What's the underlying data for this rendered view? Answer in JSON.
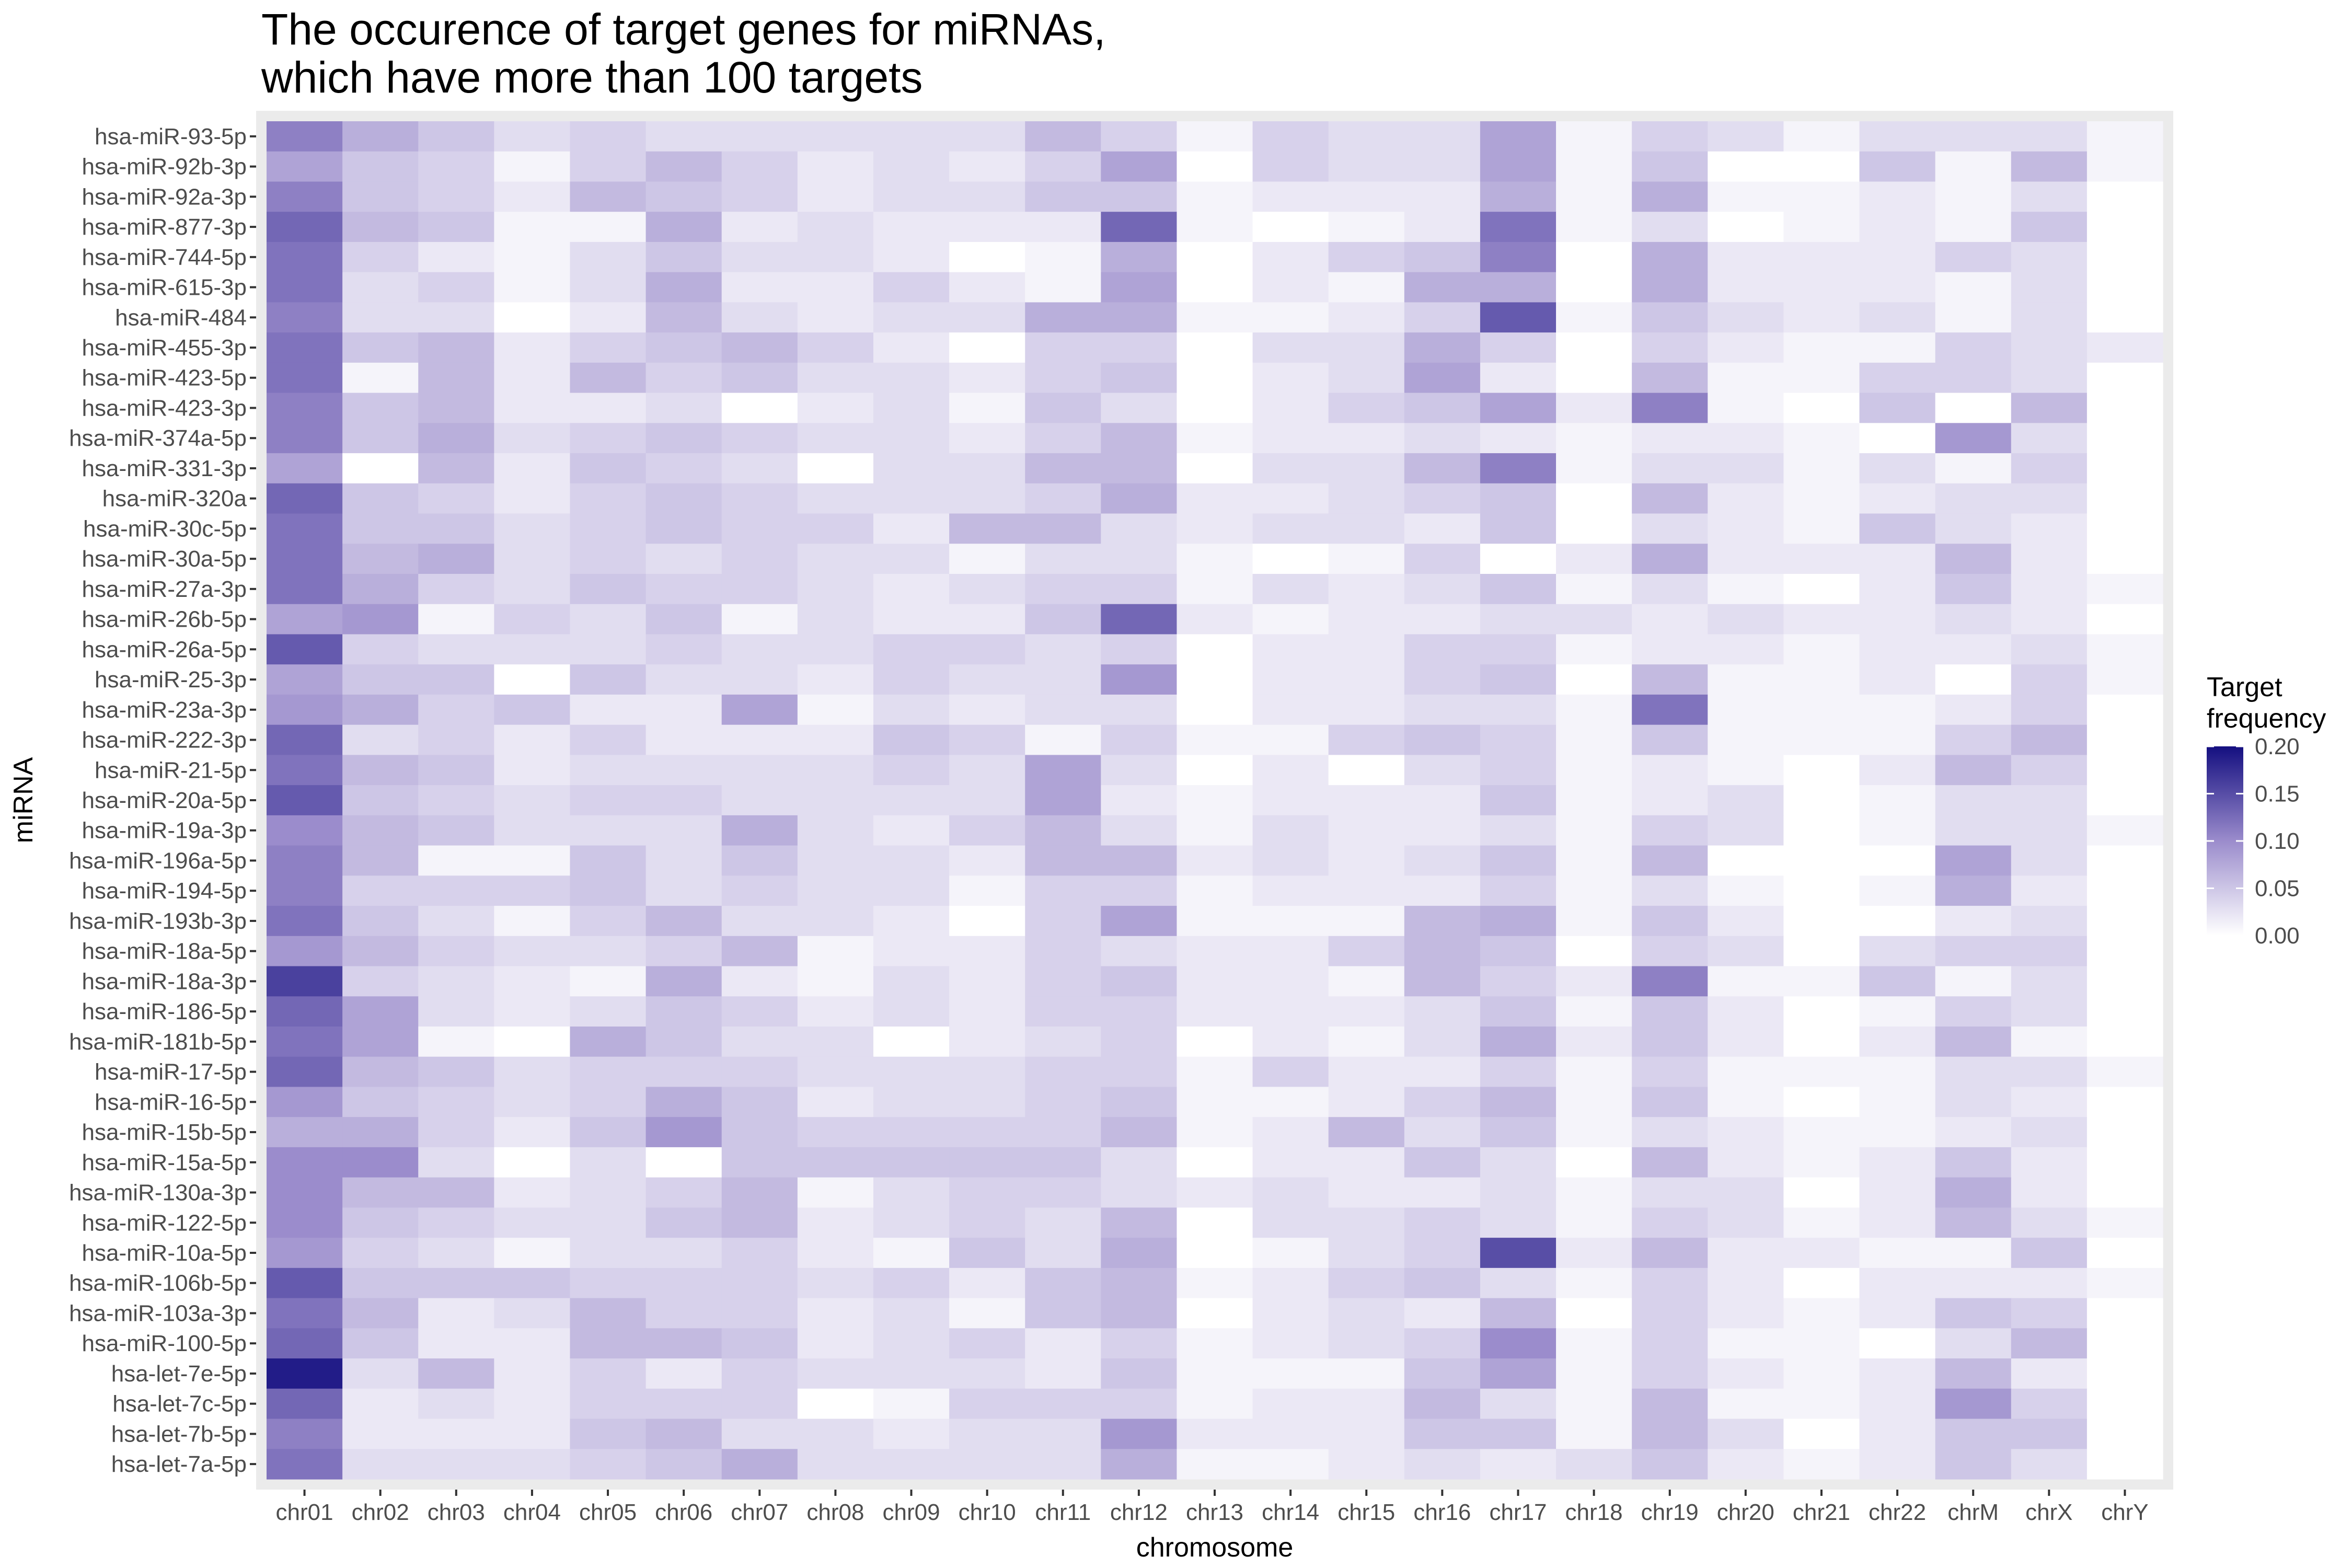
{
  "chart_data": {
    "type": "heatmap",
    "title": "The occurence of target genes for miRNAs,\nwhich have more than 100 targets",
    "xlabel": "chromosome",
    "ylabel": "miRNA",
    "x": [
      "chr01",
      "chr02",
      "chr03",
      "chr04",
      "chr05",
      "chr06",
      "chr07",
      "chr08",
      "chr09",
      "chr10",
      "chr11",
      "chr12",
      "chr13",
      "chr14",
      "chr15",
      "chr16",
      "chr17",
      "chr18",
      "chr19",
      "chr20",
      "chr21",
      "chr22",
      "chrM",
      "chrX",
      "chrY"
    ],
    "y": [
      "hsa-miR-93-5p",
      "hsa-miR-92b-3p",
      "hsa-miR-92a-3p",
      "hsa-miR-877-3p",
      "hsa-miR-744-5p",
      "hsa-miR-615-3p",
      "hsa-miR-484",
      "hsa-miR-455-3p",
      "hsa-miR-423-5p",
      "hsa-miR-423-3p",
      "hsa-miR-374a-5p",
      "hsa-miR-331-3p",
      "hsa-miR-320a",
      "hsa-miR-30c-5p",
      "hsa-miR-30a-5p",
      "hsa-miR-27a-3p",
      "hsa-miR-26b-5p",
      "hsa-miR-26a-5p",
      "hsa-miR-25-3p",
      "hsa-miR-23a-3p",
      "hsa-miR-222-3p",
      "hsa-miR-21-5p",
      "hsa-miR-20a-5p",
      "hsa-miR-19a-3p",
      "hsa-miR-196a-5p",
      "hsa-miR-194-5p",
      "hsa-miR-193b-3p",
      "hsa-miR-18a-5p",
      "hsa-miR-18a-3p",
      "hsa-miR-186-5p",
      "hsa-miR-181b-5p",
      "hsa-miR-17-5p",
      "hsa-miR-16-5p",
      "hsa-miR-15b-5p",
      "hsa-miR-15a-5p",
      "hsa-miR-130a-3p",
      "hsa-miR-122-5p",
      "hsa-miR-10a-5p",
      "hsa-miR-106b-5p",
      "hsa-miR-103a-3p",
      "hsa-miR-100-5p",
      "hsa-let-7e-5p",
      "hsa-let-7c-5p",
      "hsa-let-7b-5p",
      "hsa-let-7a-5p"
    ],
    "values": [
      [
        0.11,
        0.07,
        0.05,
        0.03,
        0.04,
        0.03,
        0.03,
        0.03,
        0.03,
        0.03,
        0.06,
        0.04,
        0.01,
        0.04,
        0.03,
        0.03,
        0.08,
        0.01,
        0.04,
        0.03,
        0.01,
        0.03,
        0.03,
        0.03,
        0.01
      ],
      [
        0.08,
        0.05,
        0.04,
        0.01,
        0.04,
        0.06,
        0.04,
        0.02,
        0.03,
        0.02,
        0.04,
        0.08,
        0.0,
        0.04,
        0.03,
        0.03,
        0.08,
        0.01,
        0.05,
        0.0,
        0.0,
        0.05,
        0.01,
        0.06,
        0.01
      ],
      [
        0.11,
        0.05,
        0.04,
        0.02,
        0.06,
        0.05,
        0.04,
        0.02,
        0.03,
        0.03,
        0.05,
        0.05,
        0.01,
        0.02,
        0.02,
        0.02,
        0.07,
        0.01,
        0.07,
        0.01,
        0.01,
        0.02,
        0.01,
        0.03,
        0.0
      ],
      [
        0.13,
        0.06,
        0.05,
        0.01,
        0.01,
        0.07,
        0.02,
        0.03,
        0.02,
        0.02,
        0.02,
        0.13,
        0.01,
        0.0,
        0.01,
        0.02,
        0.12,
        0.01,
        0.03,
        0.0,
        0.01,
        0.02,
        0.01,
        0.05,
        0.0
      ],
      [
        0.12,
        0.04,
        0.02,
        0.01,
        0.03,
        0.05,
        0.03,
        0.03,
        0.02,
        0.0,
        0.01,
        0.07,
        0.0,
        0.02,
        0.04,
        0.05,
        0.11,
        0.0,
        0.07,
        0.02,
        0.02,
        0.02,
        0.04,
        0.03,
        0.0
      ],
      [
        0.12,
        0.03,
        0.04,
        0.01,
        0.03,
        0.07,
        0.02,
        0.02,
        0.04,
        0.02,
        0.01,
        0.08,
        0.0,
        0.02,
        0.01,
        0.07,
        0.07,
        0.0,
        0.07,
        0.02,
        0.02,
        0.02,
        0.01,
        0.03,
        0.0
      ],
      [
        0.11,
        0.03,
        0.03,
        0.0,
        0.02,
        0.06,
        0.03,
        0.02,
        0.03,
        0.03,
        0.07,
        0.07,
        0.01,
        0.01,
        0.02,
        0.04,
        0.14,
        0.01,
        0.05,
        0.03,
        0.02,
        0.03,
        0.01,
        0.03,
        0.0
      ],
      [
        0.12,
        0.05,
        0.06,
        0.02,
        0.04,
        0.05,
        0.06,
        0.04,
        0.02,
        0.0,
        0.04,
        0.04,
        0.0,
        0.03,
        0.03,
        0.07,
        0.04,
        0.0,
        0.04,
        0.02,
        0.01,
        0.01,
        0.04,
        0.03,
        0.02
      ],
      [
        0.12,
        0.01,
        0.06,
        0.02,
        0.06,
        0.04,
        0.05,
        0.03,
        0.03,
        0.02,
        0.04,
        0.05,
        0.0,
        0.02,
        0.03,
        0.08,
        0.02,
        0.0,
        0.06,
        0.01,
        0.01,
        0.04,
        0.04,
        0.03,
        0.0
      ],
      [
        0.11,
        0.05,
        0.06,
        0.02,
        0.02,
        0.03,
        0.0,
        0.02,
        0.03,
        0.01,
        0.05,
        0.03,
        0.0,
        0.02,
        0.04,
        0.05,
        0.08,
        0.02,
        0.11,
        0.01,
        0.0,
        0.05,
        0.0,
        0.06,
        0.0
      ],
      [
        0.11,
        0.05,
        0.07,
        0.03,
        0.04,
        0.05,
        0.04,
        0.03,
        0.03,
        0.02,
        0.04,
        0.06,
        0.01,
        0.02,
        0.02,
        0.03,
        0.02,
        0.01,
        0.02,
        0.02,
        0.01,
        0.0,
        0.09,
        0.03,
        0.0
      ],
      [
        0.08,
        0.0,
        0.06,
        0.02,
        0.05,
        0.04,
        0.03,
        0.0,
        0.03,
        0.03,
        0.06,
        0.06,
        0.0,
        0.03,
        0.03,
        0.06,
        0.11,
        0.01,
        0.03,
        0.03,
        0.01,
        0.03,
        0.01,
        0.04,
        0.0
      ],
      [
        0.13,
        0.05,
        0.04,
        0.02,
        0.04,
        0.05,
        0.04,
        0.03,
        0.03,
        0.03,
        0.04,
        0.07,
        0.02,
        0.02,
        0.03,
        0.04,
        0.05,
        0.0,
        0.06,
        0.02,
        0.01,
        0.02,
        0.03,
        0.03,
        0.0
      ],
      [
        0.12,
        0.05,
        0.05,
        0.03,
        0.04,
        0.05,
        0.04,
        0.04,
        0.02,
        0.06,
        0.06,
        0.03,
        0.02,
        0.03,
        0.03,
        0.02,
        0.05,
        0.0,
        0.03,
        0.02,
        0.01,
        0.05,
        0.03,
        0.02,
        0.0
      ],
      [
        0.12,
        0.06,
        0.07,
        0.03,
        0.04,
        0.03,
        0.04,
        0.03,
        0.03,
        0.01,
        0.03,
        0.03,
        0.01,
        0.0,
        0.01,
        0.04,
        0.0,
        0.02,
        0.07,
        0.02,
        0.02,
        0.02,
        0.06,
        0.02,
        0.0
      ],
      [
        0.12,
        0.07,
        0.04,
        0.03,
        0.05,
        0.04,
        0.04,
        0.03,
        0.02,
        0.03,
        0.04,
        0.04,
        0.01,
        0.03,
        0.02,
        0.03,
        0.05,
        0.01,
        0.03,
        0.01,
        0.0,
        0.02,
        0.05,
        0.02,
        0.01
      ],
      [
        0.08,
        0.09,
        0.01,
        0.04,
        0.03,
        0.05,
        0.01,
        0.03,
        0.02,
        0.02,
        0.05,
        0.13,
        0.02,
        0.01,
        0.02,
        0.02,
        0.03,
        0.03,
        0.02,
        0.03,
        0.02,
        0.02,
        0.03,
        0.02,
        0.0
      ],
      [
        0.14,
        0.04,
        0.03,
        0.03,
        0.03,
        0.04,
        0.03,
        0.03,
        0.04,
        0.04,
        0.03,
        0.04,
        0.0,
        0.02,
        0.02,
        0.04,
        0.04,
        0.01,
        0.02,
        0.02,
        0.01,
        0.02,
        0.02,
        0.03,
        0.01
      ],
      [
        0.08,
        0.05,
        0.05,
        0.0,
        0.05,
        0.03,
        0.03,
        0.02,
        0.04,
        0.03,
        0.03,
        0.09,
        0.0,
        0.02,
        0.02,
        0.04,
        0.05,
        0.0,
        0.06,
        0.01,
        0.01,
        0.02,
        0.0,
        0.04,
        0.01
      ],
      [
        0.09,
        0.07,
        0.04,
        0.05,
        0.02,
        0.02,
        0.08,
        0.01,
        0.03,
        0.02,
        0.03,
        0.03,
        0.0,
        0.02,
        0.02,
        0.03,
        0.03,
        0.01,
        0.12,
        0.01,
        0.01,
        0.01,
        0.02,
        0.04,
        0.0
      ],
      [
        0.13,
        0.03,
        0.04,
        0.02,
        0.04,
        0.02,
        0.02,
        0.02,
        0.05,
        0.04,
        0.01,
        0.04,
        0.01,
        0.01,
        0.04,
        0.05,
        0.04,
        0.01,
        0.05,
        0.01,
        0.01,
        0.01,
        0.04,
        0.06,
        0.0
      ],
      [
        0.12,
        0.06,
        0.05,
        0.02,
        0.03,
        0.03,
        0.03,
        0.03,
        0.04,
        0.03,
        0.08,
        0.03,
        0.0,
        0.02,
        0.0,
        0.03,
        0.04,
        0.01,
        0.02,
        0.01,
        0.0,
        0.02,
        0.06,
        0.04,
        0.0
      ],
      [
        0.14,
        0.05,
        0.04,
        0.03,
        0.04,
        0.04,
        0.03,
        0.03,
        0.03,
        0.03,
        0.08,
        0.02,
        0.01,
        0.02,
        0.02,
        0.02,
        0.05,
        0.01,
        0.02,
        0.03,
        0.0,
        0.01,
        0.03,
        0.03,
        0.0
      ],
      [
        0.1,
        0.06,
        0.05,
        0.03,
        0.03,
        0.03,
        0.07,
        0.03,
        0.02,
        0.04,
        0.06,
        0.03,
        0.01,
        0.03,
        0.02,
        0.02,
        0.03,
        0.01,
        0.04,
        0.03,
        0.0,
        0.01,
        0.03,
        0.03,
        0.01
      ],
      [
        0.11,
        0.06,
        0.01,
        0.01,
        0.05,
        0.03,
        0.05,
        0.03,
        0.03,
        0.02,
        0.06,
        0.06,
        0.02,
        0.03,
        0.02,
        0.03,
        0.05,
        0.01,
        0.06,
        0.0,
        0.0,
        0.0,
        0.08,
        0.03,
        0.0
      ],
      [
        0.11,
        0.04,
        0.04,
        0.04,
        0.05,
        0.03,
        0.04,
        0.03,
        0.03,
        0.01,
        0.04,
        0.04,
        0.01,
        0.02,
        0.02,
        0.02,
        0.04,
        0.01,
        0.03,
        0.01,
        0.0,
        0.01,
        0.07,
        0.02,
        0.0
      ],
      [
        0.12,
        0.05,
        0.03,
        0.01,
        0.04,
        0.06,
        0.03,
        0.03,
        0.02,
        0.0,
        0.04,
        0.08,
        0.01,
        0.01,
        0.01,
        0.06,
        0.07,
        0.01,
        0.05,
        0.02,
        0.0,
        0.0,
        0.02,
        0.03,
        0.0
      ],
      [
        0.09,
        0.06,
        0.04,
        0.03,
        0.03,
        0.04,
        0.06,
        0.01,
        0.02,
        0.02,
        0.04,
        0.03,
        0.02,
        0.02,
        0.04,
        0.06,
        0.05,
        0.0,
        0.04,
        0.03,
        0.0,
        0.03,
        0.04,
        0.04,
        0.0
      ],
      [
        0.16,
        0.04,
        0.03,
        0.02,
        0.01,
        0.07,
        0.02,
        0.01,
        0.03,
        0.02,
        0.04,
        0.05,
        0.02,
        0.02,
        0.01,
        0.06,
        0.04,
        0.02,
        0.11,
        0.01,
        0.01,
        0.05,
        0.01,
        0.03,
        0.0
      ],
      [
        0.13,
        0.08,
        0.03,
        0.02,
        0.03,
        0.05,
        0.04,
        0.02,
        0.03,
        0.02,
        0.04,
        0.04,
        0.02,
        0.02,
        0.02,
        0.03,
        0.05,
        0.01,
        0.05,
        0.02,
        0.0,
        0.01,
        0.04,
        0.03,
        0.0
      ],
      [
        0.12,
        0.08,
        0.01,
        0.0,
        0.07,
        0.05,
        0.03,
        0.03,
        0.0,
        0.02,
        0.03,
        0.04,
        0.0,
        0.02,
        0.01,
        0.03,
        0.07,
        0.02,
        0.05,
        0.02,
        0.0,
        0.02,
        0.06,
        0.01,
        0.0
      ],
      [
        0.13,
        0.06,
        0.05,
        0.03,
        0.04,
        0.04,
        0.04,
        0.03,
        0.03,
        0.03,
        0.04,
        0.04,
        0.01,
        0.04,
        0.02,
        0.02,
        0.04,
        0.01,
        0.04,
        0.01,
        0.01,
        0.01,
        0.03,
        0.03,
        0.01
      ],
      [
        0.09,
        0.05,
        0.04,
        0.03,
        0.04,
        0.07,
        0.05,
        0.02,
        0.03,
        0.03,
        0.04,
        0.05,
        0.01,
        0.01,
        0.02,
        0.04,
        0.06,
        0.01,
        0.05,
        0.01,
        0.0,
        0.01,
        0.03,
        0.02,
        0.0
      ],
      [
        0.07,
        0.07,
        0.04,
        0.02,
        0.05,
        0.09,
        0.05,
        0.04,
        0.04,
        0.04,
        0.04,
        0.06,
        0.01,
        0.02,
        0.06,
        0.03,
        0.05,
        0.01,
        0.03,
        0.02,
        0.01,
        0.01,
        0.02,
        0.03,
        0.0
      ],
      [
        0.1,
        0.1,
        0.03,
        0.0,
        0.03,
        0.0,
        0.05,
        0.05,
        0.05,
        0.05,
        0.05,
        0.03,
        0.0,
        0.02,
        0.02,
        0.05,
        0.03,
        0.0,
        0.06,
        0.02,
        0.01,
        0.02,
        0.05,
        0.02,
        0.0
      ],
      [
        0.1,
        0.06,
        0.06,
        0.02,
        0.03,
        0.04,
        0.06,
        0.01,
        0.03,
        0.04,
        0.04,
        0.03,
        0.02,
        0.03,
        0.02,
        0.02,
        0.03,
        0.01,
        0.03,
        0.03,
        0.0,
        0.02,
        0.07,
        0.02,
        0.0
      ],
      [
        0.1,
        0.05,
        0.04,
        0.03,
        0.03,
        0.05,
        0.06,
        0.02,
        0.03,
        0.04,
        0.03,
        0.06,
        0.0,
        0.03,
        0.03,
        0.04,
        0.03,
        0.01,
        0.04,
        0.03,
        0.01,
        0.02,
        0.06,
        0.03,
        0.01
      ],
      [
        0.09,
        0.04,
        0.03,
        0.01,
        0.03,
        0.03,
        0.04,
        0.02,
        0.01,
        0.05,
        0.03,
        0.07,
        0.0,
        0.01,
        0.03,
        0.04,
        0.15,
        0.02,
        0.06,
        0.02,
        0.02,
        0.01,
        0.01,
        0.05,
        0.0
      ],
      [
        0.14,
        0.05,
        0.05,
        0.05,
        0.04,
        0.04,
        0.04,
        0.03,
        0.04,
        0.02,
        0.05,
        0.06,
        0.01,
        0.02,
        0.04,
        0.05,
        0.03,
        0.01,
        0.04,
        0.02,
        0.0,
        0.02,
        0.02,
        0.02,
        0.01
      ],
      [
        0.12,
        0.06,
        0.02,
        0.03,
        0.06,
        0.04,
        0.04,
        0.02,
        0.03,
        0.01,
        0.05,
        0.06,
        0.0,
        0.02,
        0.03,
        0.02,
        0.06,
        0.0,
        0.04,
        0.02,
        0.01,
        0.02,
        0.05,
        0.04,
        0.0
      ],
      [
        0.13,
        0.05,
        0.02,
        0.02,
        0.06,
        0.06,
        0.05,
        0.02,
        0.03,
        0.04,
        0.02,
        0.04,
        0.01,
        0.02,
        0.03,
        0.04,
        0.1,
        0.01,
        0.04,
        0.01,
        0.01,
        0.0,
        0.03,
        0.06,
        0.0
      ],
      [
        0.19,
        0.03,
        0.06,
        0.02,
        0.04,
        0.02,
        0.04,
        0.03,
        0.03,
        0.03,
        0.02,
        0.05,
        0.01,
        0.01,
        0.01,
        0.05,
        0.08,
        0.01,
        0.04,
        0.02,
        0.01,
        0.02,
        0.06,
        0.02,
        0.0
      ],
      [
        0.13,
        0.02,
        0.03,
        0.02,
        0.04,
        0.04,
        0.04,
        0.0,
        0.01,
        0.04,
        0.04,
        0.04,
        0.01,
        0.02,
        0.02,
        0.06,
        0.03,
        0.01,
        0.06,
        0.01,
        0.01,
        0.02,
        0.09,
        0.04,
        0.0
      ],
      [
        0.11,
        0.02,
        0.02,
        0.02,
        0.05,
        0.06,
        0.03,
        0.03,
        0.02,
        0.03,
        0.03,
        0.09,
        0.02,
        0.02,
        0.02,
        0.05,
        0.05,
        0.01,
        0.06,
        0.03,
        0.0,
        0.02,
        0.05,
        0.05,
        0.0
      ],
      [
        0.12,
        0.03,
        0.03,
        0.03,
        0.04,
        0.05,
        0.07,
        0.03,
        0.03,
        0.03,
        0.03,
        0.07,
        0.01,
        0.01,
        0.02,
        0.03,
        0.02,
        0.03,
        0.05,
        0.02,
        0.01,
        0.02,
        0.05,
        0.03,
        0.0
      ]
    ],
    "colorscale": {
      "title": "Target\nfrequency",
      "min": 0,
      "max": 0.2,
      "low_color": "#ffffff",
      "mid_color": "#9b8ccc",
      "high_color": "#140f80",
      "ticks": [
        "0.20",
        "0.15",
        "0.10",
        "0.05",
        "0.00"
      ],
      "tick_values": [
        0.2,
        0.15,
        0.1,
        0.05,
        0.0
      ]
    },
    "legend_position": "right",
    "panel_background": "#ebebeb"
  }
}
